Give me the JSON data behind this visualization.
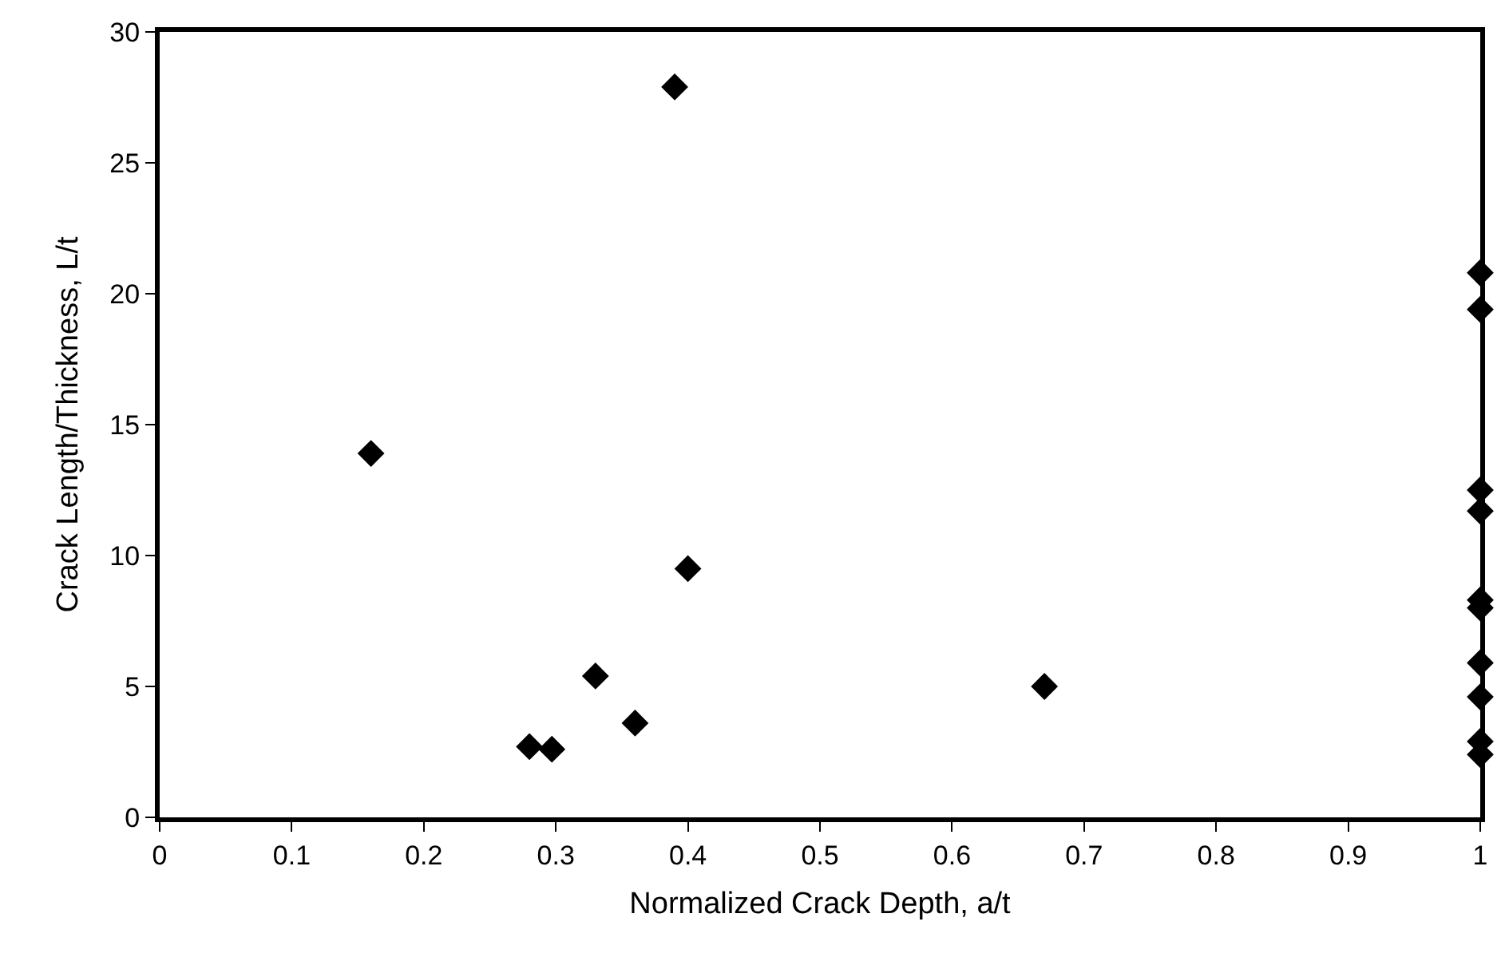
{
  "chart_data": {
    "type": "scatter",
    "xlabel": "Normalized Crack Depth, a/t",
    "ylabel": "Crack Length/Thickness, L/t",
    "x": [
      0.39,
      0.16,
      0.4,
      0.33,
      0.36,
      0.28,
      0.297,
      0.67,
      1,
      1,
      1,
      1,
      1,
      1,
      1,
      1,
      1,
      1
    ],
    "values": [
      27.9,
      13.9,
      9.5,
      5.4,
      3.6,
      2.7,
      2.6,
      5.0,
      20.8,
      19.4,
      12.5,
      11.7,
      8.3,
      8.0,
      5.9,
      4.6,
      2.9,
      2.4
    ],
    "color": "#000000",
    "marker": "diamond",
    "xlim": [
      0,
      1
    ],
    "xticks": [
      0,
      0.1,
      0.2,
      0.3,
      0.4,
      0.5,
      0.6,
      0.7,
      0.8,
      0.9,
      1
    ],
    "ylim": [
      0,
      30
    ],
    "yticks": [
      0,
      5,
      10,
      15,
      20,
      25,
      30
    ]
  }
}
